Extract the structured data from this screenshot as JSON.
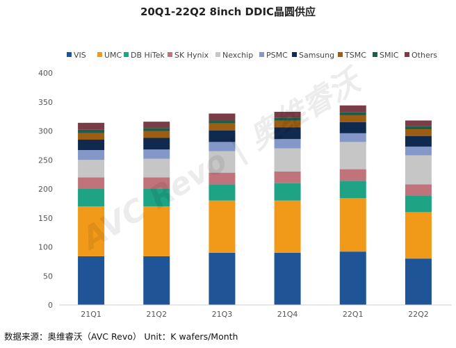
{
  "chart_data": {
    "type": "bar",
    "stacked": true,
    "title": "20Q1-22Q2 8inch DDIC晶圆供应",
    "categories": [
      "21Q1",
      "21Q2",
      "21Q3",
      "21Q4",
      "22Q1",
      "22Q2"
    ],
    "ylim": [
      0,
      400
    ],
    "yticks": [
      0,
      50,
      100,
      150,
      200,
      250,
      300,
      350,
      400
    ],
    "grid": false,
    "legend_position": "top",
    "series": [
      {
        "name": "VIS",
        "color": "#1f5597",
        "values": [
          84,
          84,
          90,
          90,
          92,
          80
        ]
      },
      {
        "name": "UMC",
        "color": "#f19a1a",
        "values": [
          86,
          86,
          90,
          90,
          92,
          80
        ]
      },
      {
        "name": "DB HiTek",
        "color": "#1fa385",
        "values": [
          30,
          30,
          28,
          30,
          30,
          28
        ]
      },
      {
        "name": "SK Hynix",
        "color": "#c0737a",
        "values": [
          20,
          20,
          20,
          20,
          20,
          20
        ]
      },
      {
        "name": "Nexchip",
        "color": "#c6c6c6",
        "values": [
          30,
          32,
          37,
          40,
          47,
          50
        ]
      },
      {
        "name": "PSMC",
        "color": "#8497c9",
        "values": [
          17,
          16,
          16,
          16,
          15,
          15
        ]
      },
      {
        "name": "Samsung",
        "color": "#0f2a4e",
        "values": [
          18,
          20,
          20,
          20,
          19,
          18
        ]
      },
      {
        "name": "TSMC",
        "color": "#9b5e14",
        "values": [
          11,
          12,
          12,
          12,
          12,
          12
        ]
      },
      {
        "name": "SMIC",
        "color": "#1b5e4c",
        "values": [
          6,
          5,
          5,
          5,
          5,
          5
        ]
      },
      {
        "name": "Others",
        "color": "#7b3d45",
        "values": [
          12,
          11,
          12,
          10,
          12,
          10
        ]
      }
    ]
  },
  "footer": "数据来源：奥维睿沃（AVC Revo）  Unit：K wafers/Month",
  "watermark": "AVC Revo | 奥维睿沃"
}
